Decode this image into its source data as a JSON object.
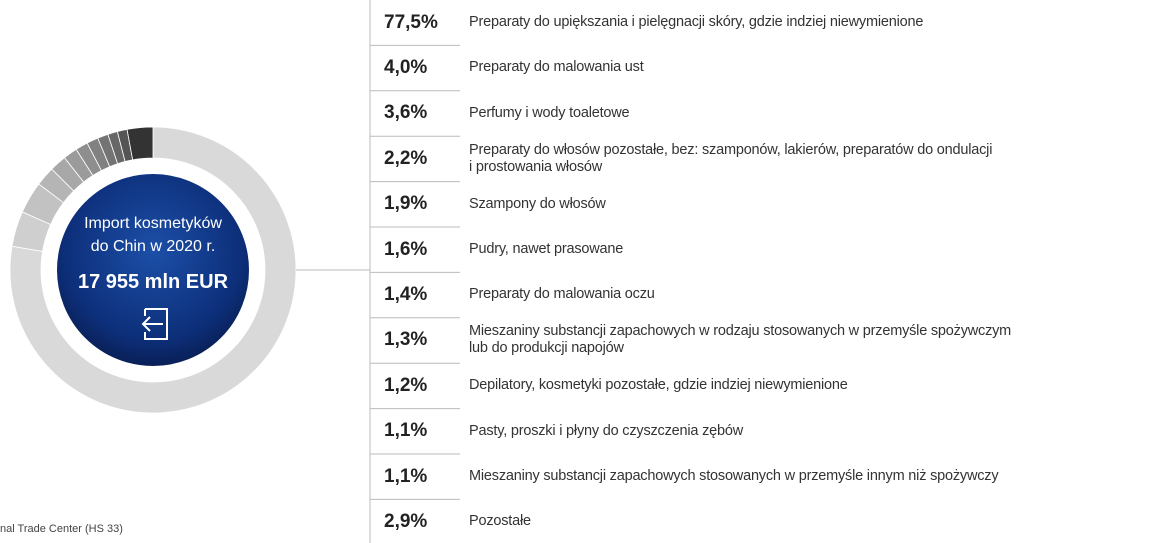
{
  "chart_data": {
    "type": "pie",
    "title_lines": [
      "Import kosmetyków",
      "do Chin w 2020 r."
    ],
    "total": "17 955 mln EUR",
    "categories": [
      [
        "Preparaty do upiększania i pielęgnacji skóry, gdzie indziej niewymienione"
      ],
      [
        "Preparaty do malowania ust"
      ],
      [
        "Perfumy i wody toaletowe"
      ],
      [
        "Preparaty do włosów pozostałe, bez: szamponów, lakierów, preparatów do ondulacji",
        "i prostowania włosów"
      ],
      [
        "Szampony do włosów"
      ],
      [
        "Pudry, nawet prasowane"
      ],
      [
        "Preparaty do malowania oczu"
      ],
      [
        "Mieszaniny substancji zapachowych w rodzaju stosowanych w przemyśle spożywczym",
        "lub do produkcji napojów"
      ],
      [
        "Depilatory, kosmetyki pozostałe, gdzie indziej niewymienione"
      ],
      [
        "Pasty, proszki i płyny do czyszczenia zębów"
      ],
      [
        "Mieszaniny substancji zapachowych stosowanych w przemyśle innym niż spożywczy"
      ],
      [
        "Pozostałe"
      ]
    ],
    "values": [
      77.5,
      4.0,
      3.6,
      2.2,
      1.9,
      1.6,
      1.4,
      1.3,
      1.2,
      1.1,
      1.1,
      2.9
    ],
    "value_labels": [
      "77,5%",
      "4,0%",
      "3,6%",
      "2,2%",
      "1,9%",
      "1,6%",
      "1,4%",
      "1,3%",
      "1,2%",
      "1,1%",
      "1,1%",
      "2,9%"
    ],
    "colors": [
      "#d9d9d9",
      "#cfcfcf",
      "#c2c2c2",
      "#b5b5b5",
      "#a8a8a8",
      "#9b9b9b",
      "#8e8e8e",
      "#818181",
      "#747474",
      "#676767",
      "#555555",
      "#333333"
    ],
    "source": "nal Trade Center (HS 33)"
  }
}
